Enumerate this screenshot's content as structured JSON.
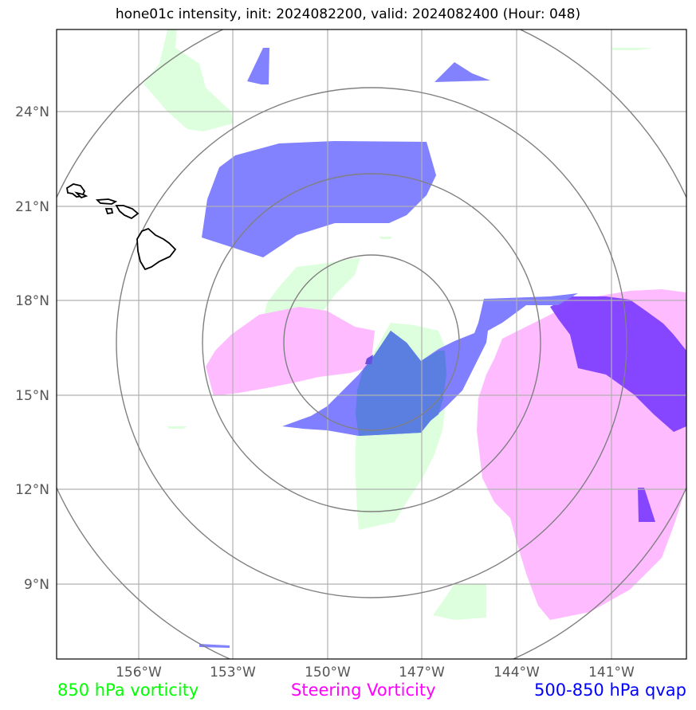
{
  "title": "hone01c intensity, init: 2024082200, valid: 2024082400 (Hour: 048)",
  "y_ticks": [
    "24°N",
    "21°N",
    "18°N",
    "15°N",
    "12°N",
    "9°N"
  ],
  "x_ticks": [
    "156°W",
    "153°W",
    "150°W",
    "147°W",
    "144°W",
    "141°W"
  ],
  "legend": [
    {
      "label": "850 hPa vorticity",
      "color": "#00ff00"
    },
    {
      "label": "Steering Vorticity",
      "color": "#ff00ff"
    },
    {
      "label": "500-850 hPa qvap",
      "color": "#0000ff"
    }
  ],
  "colors": {
    "vorticity_850": "#ddffdd",
    "steering_vorticity": "#ffbbff",
    "qvap": "#7f7fff",
    "qvap_overlap": "#7f3fff",
    "range_rings": "#808080",
    "gridlines": "#b0b0b0",
    "coastline": "#000000"
  },
  "map": {
    "lon_range": [
      -158.5,
      -138.5
    ],
    "lat_range": [
      7.2,
      27.2
    ],
    "projection": "lat/lon",
    "features": [
      "Hawaiian Islands coastline",
      "range rings around storm center"
    ]
  }
}
